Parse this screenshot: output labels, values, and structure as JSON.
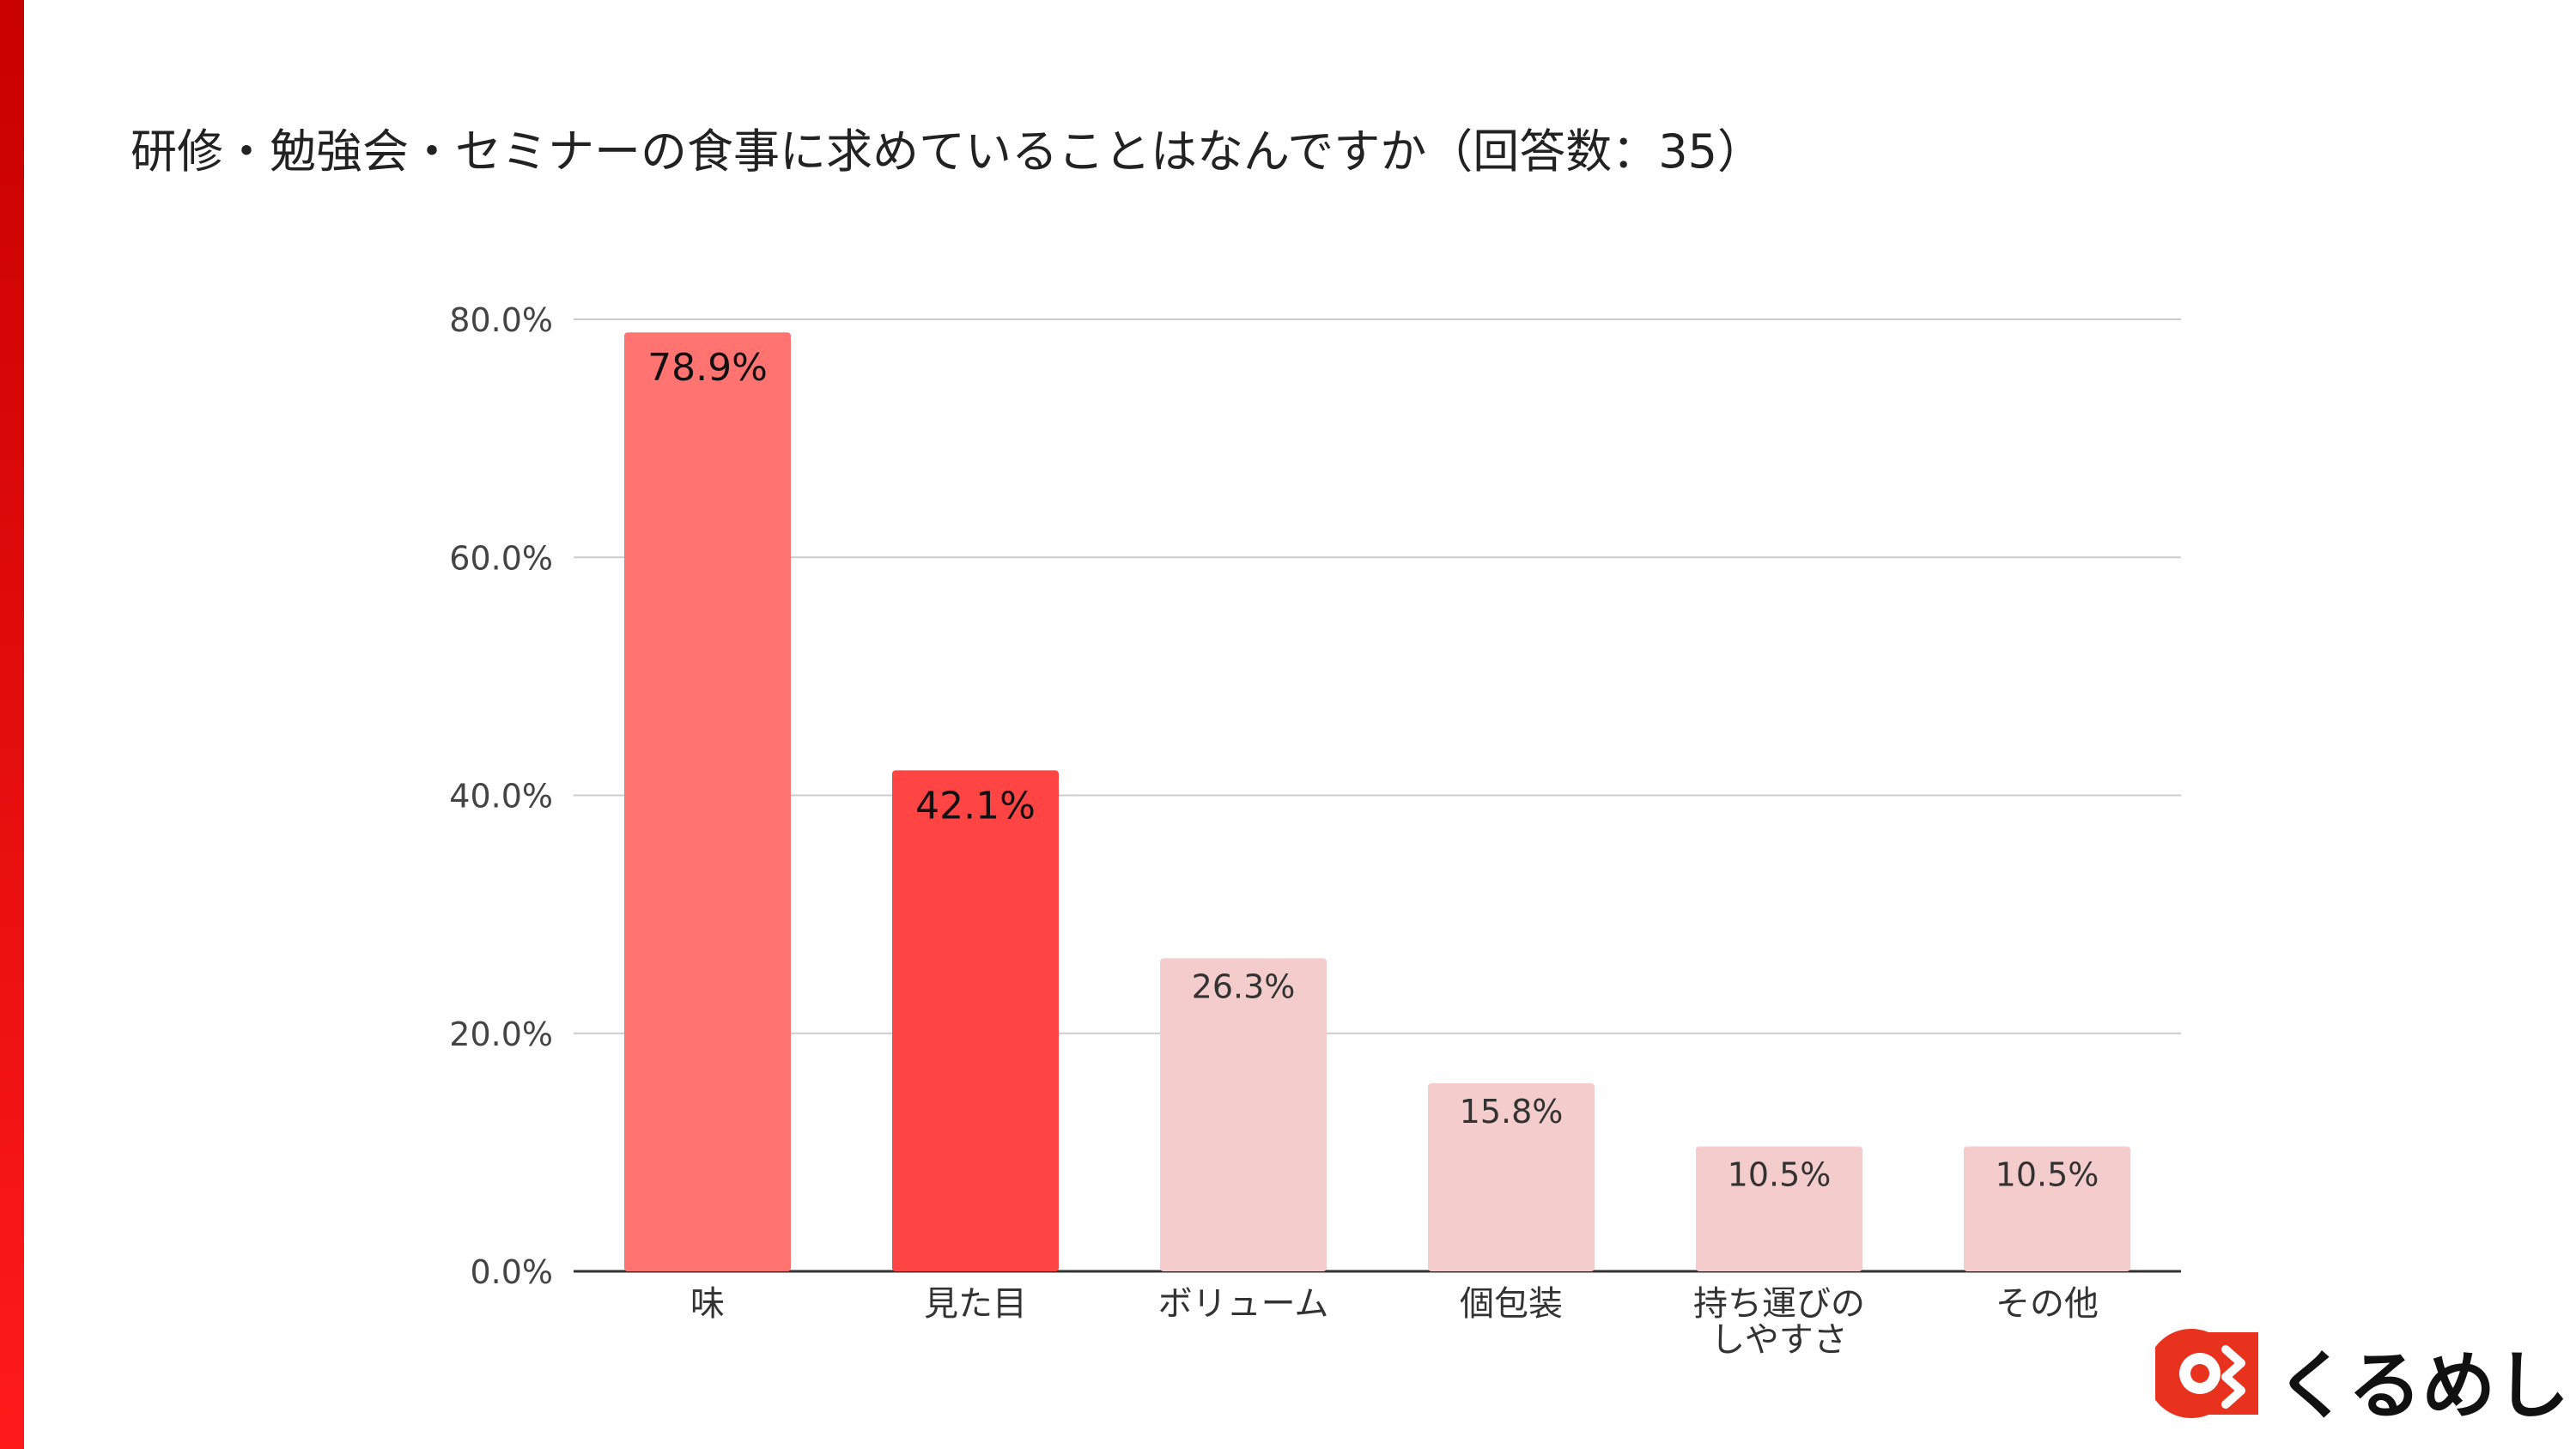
{
  "title": "研修・勉強会・セミナーの食事に求めていることはなんですか（回答数：35）",
  "logo_text": "くるめし",
  "colors": {
    "accent": "#e8001c",
    "logo_red": "#e8321e"
  },
  "chart_data": {
    "type": "bar",
    "categories": [
      "味",
      "見た目",
      "ボリューム",
      "個包装",
      [
        "持ち運びの",
        "しやすさ"
      ],
      "その他"
    ],
    "values": [
      78.9,
      42.1,
      26.3,
      15.8,
      10.5,
      10.5
    ],
    "data_labels": [
      "78.9%",
      "42.1%",
      "26.3%",
      "15.8%",
      "10.5%",
      "10.5%"
    ],
    "bar_colors": [
      "#ff7370",
      "#ff4444",
      "#f4cccc",
      "#f4cccc",
      "#f4cccc",
      "#f4cccc"
    ],
    "ylim": [
      0,
      80
    ],
    "yticks": [
      "0.0%",
      "20.0%",
      "40.0%",
      "60.0%",
      "80.0%"
    ],
    "grid": true,
    "xlabel": "",
    "ylabel": ""
  }
}
